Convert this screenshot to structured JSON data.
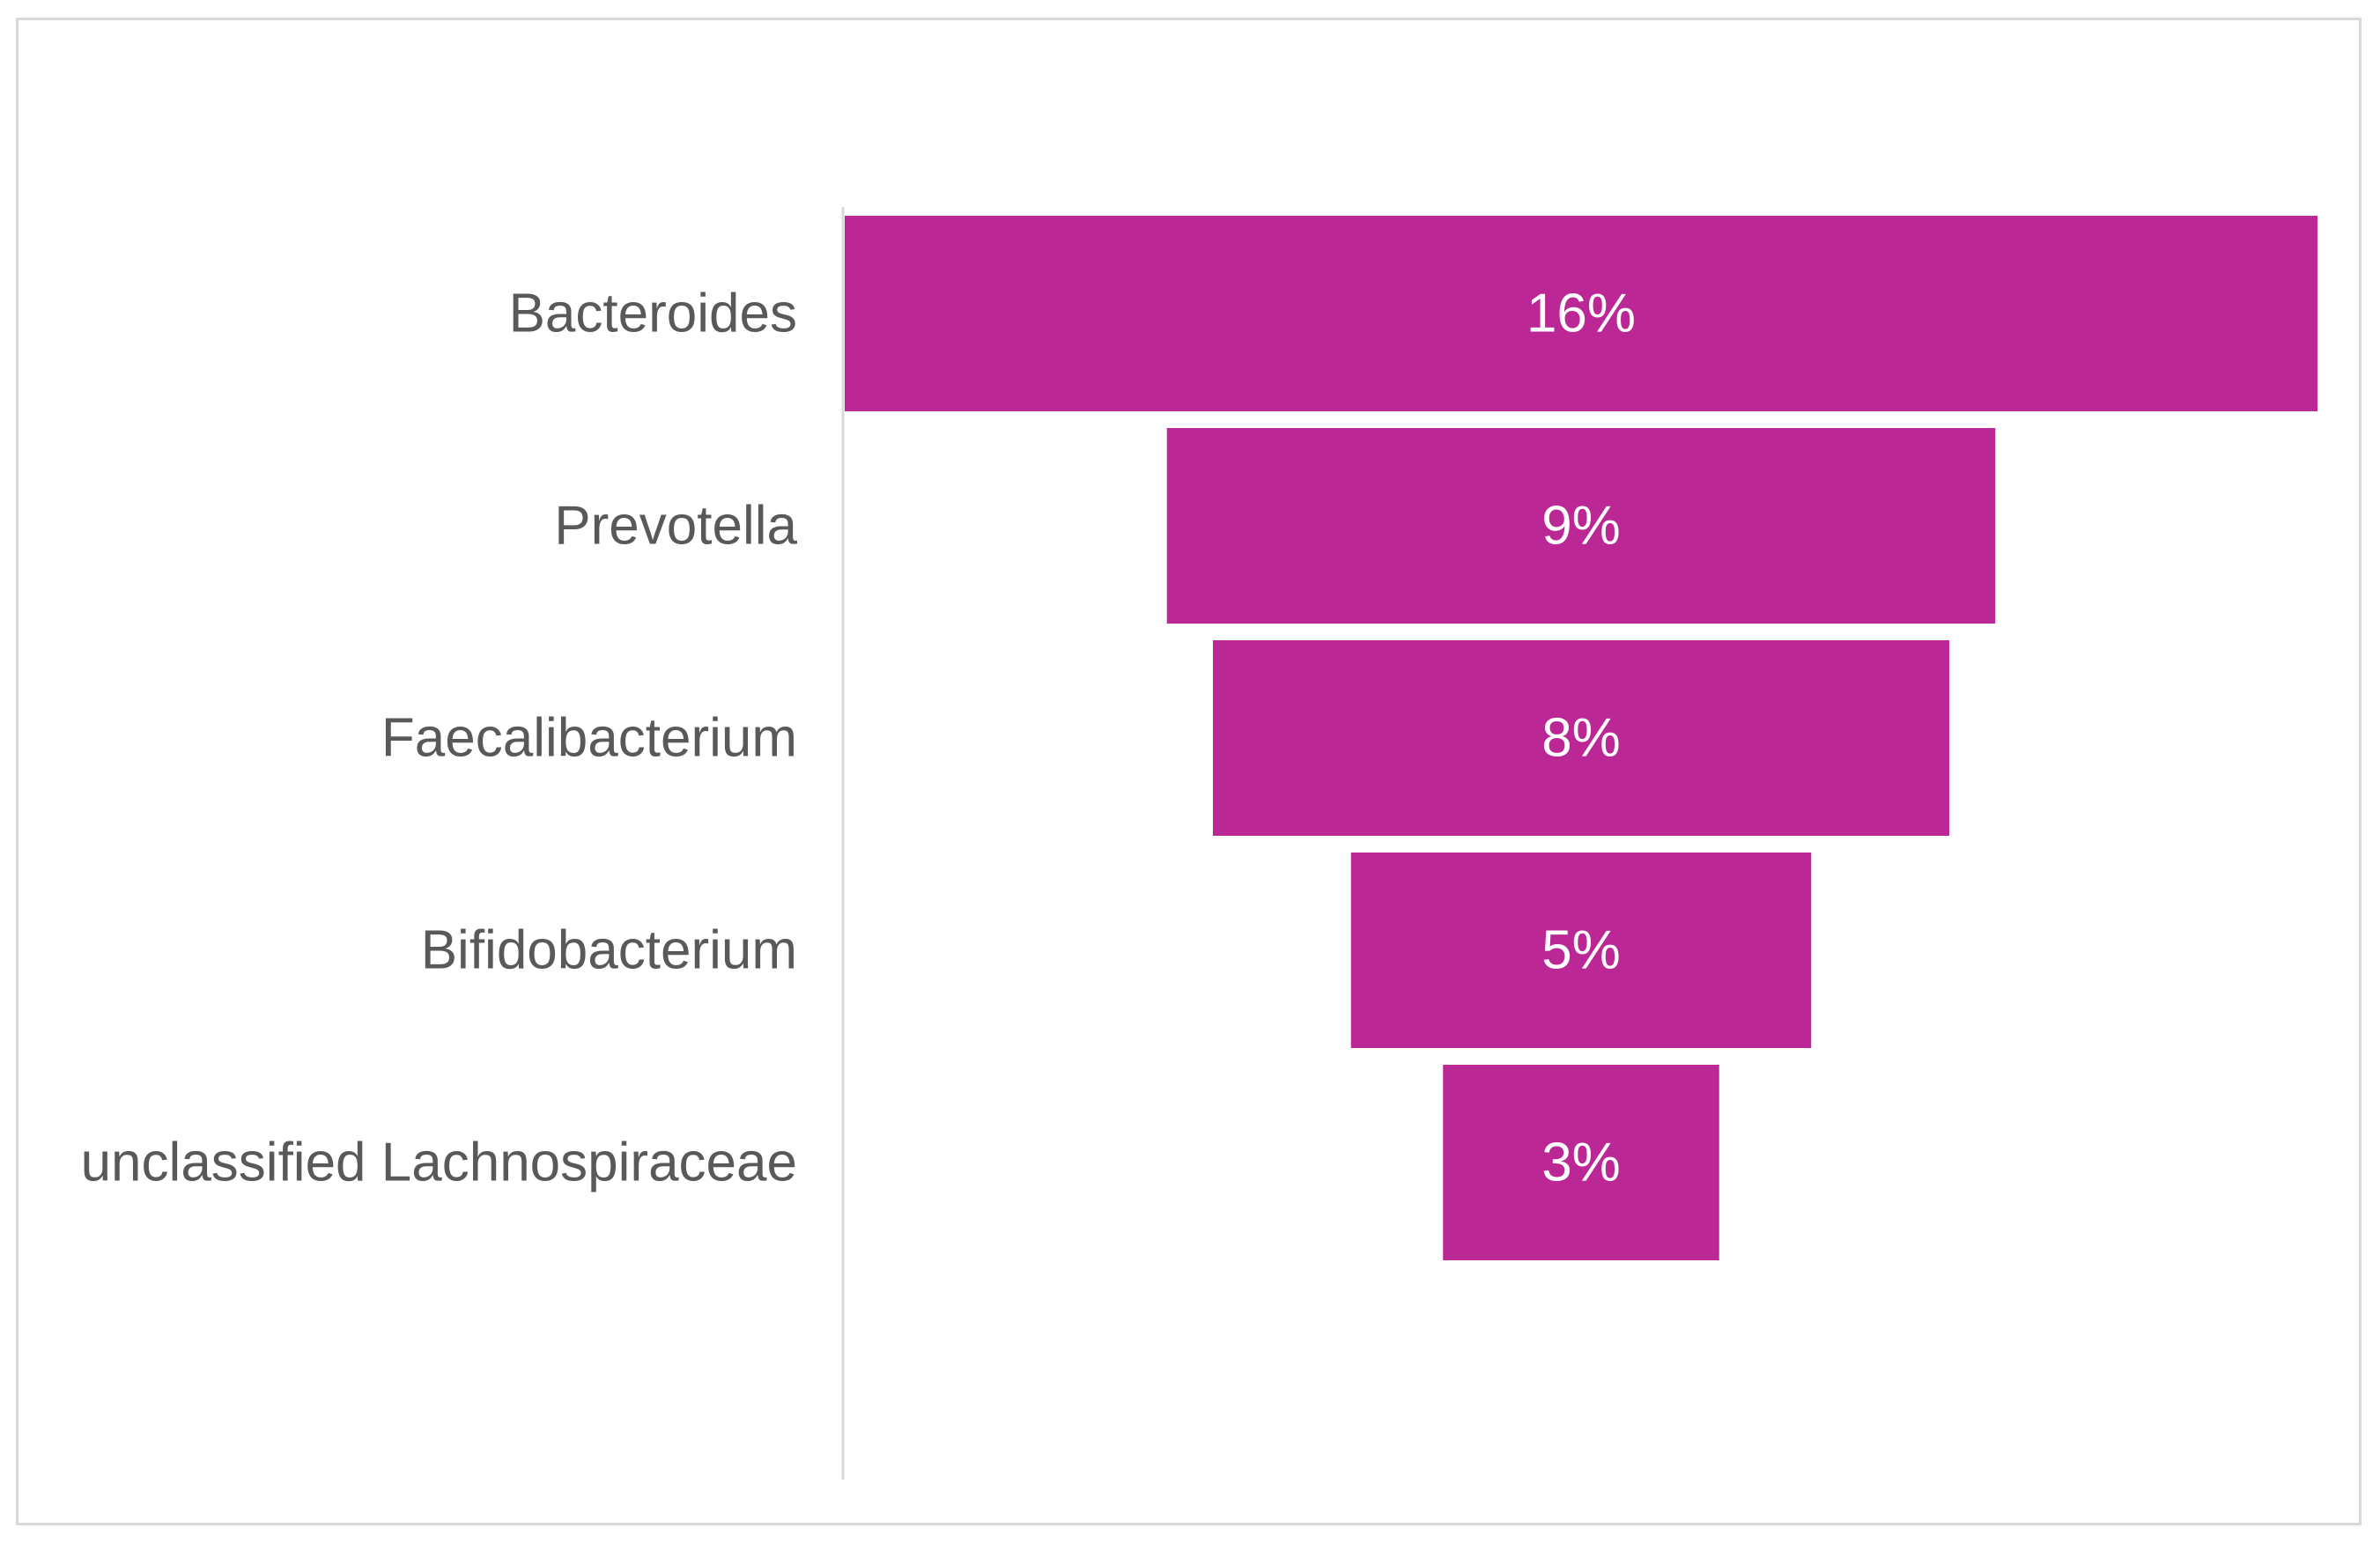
{
  "chart_data": {
    "type": "bar",
    "orientation": "horizontal",
    "layout": "funnel",
    "categories": [
      "Bacteroides",
      "Prevotella",
      "Faecalibacterium",
      "Bifidobacterium",
      "unclassified Lachnospiraceae"
    ],
    "values": [
      16,
      9,
      8,
      5,
      3
    ],
    "value_labels": [
      "16%",
      "9%",
      "8%",
      "5%",
      "3%"
    ],
    "unit": "%",
    "title": "",
    "xlabel": "",
    "ylabel": "",
    "legend": "none",
    "grid": false,
    "colors": {
      "bar": "#bb2794",
      "label_text": "#595959",
      "value_text": "#ffffff",
      "axis": "#d9d9d9",
      "frame": "#d9d9d9"
    }
  }
}
